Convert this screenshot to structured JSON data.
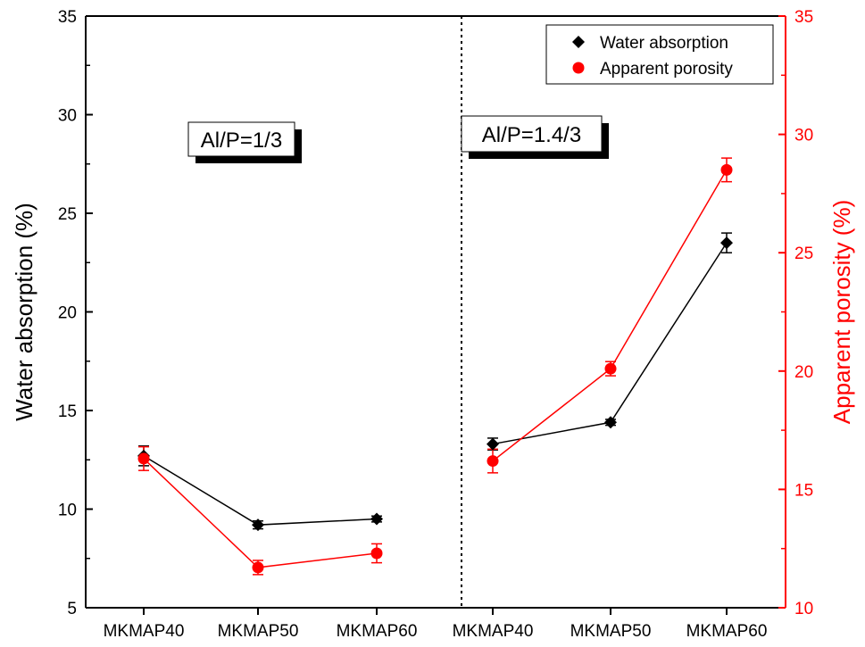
{
  "chart_data": {
    "type": "scatter",
    "categories": [
      "MKMAP40",
      "MKMAP50",
      "MKMAP60",
      "MKMAP40",
      "MKMAP50",
      "MKMAP60"
    ],
    "groups": [
      {
        "label": "Al/P=1/3",
        "category_indices": [
          0,
          1,
          2
        ]
      },
      {
        "label": "Al/P=1.4/3",
        "category_indices": [
          3,
          4,
          5
        ]
      }
    ],
    "left_axis": {
      "label": "Water absorption (%)",
      "ylim": [
        5,
        35
      ],
      "ticks": [
        5,
        10,
        15,
        20,
        25,
        30,
        35
      ],
      "color": "#000000"
    },
    "right_axis": {
      "label": "Apparent porosity (%)",
      "ylim": [
        10,
        35
      ],
      "ticks": [
        10,
        15,
        20,
        25,
        30,
        35
      ],
      "color": "#ff0000"
    },
    "series": [
      {
        "name": "Water absorption",
        "axis": "left",
        "marker": "diamond",
        "color": "#000000",
        "values": [
          12.7,
          9.2,
          9.5,
          13.3,
          14.4,
          23.5
        ],
        "errors": [
          0.5,
          0.2,
          0.15,
          0.3,
          0.15,
          0.5
        ]
      },
      {
        "name": "Apparent porosity",
        "axis": "right",
        "marker": "circle",
        "color": "#ff0000",
        "values": [
          16.3,
          11.7,
          12.3,
          16.2,
          20.1,
          28.5
        ],
        "errors": [
          0.5,
          0.3,
          0.4,
          0.5,
          0.3,
          0.5
        ]
      }
    ],
    "legend": {
      "position": "top-right"
    },
    "grid": false
  }
}
